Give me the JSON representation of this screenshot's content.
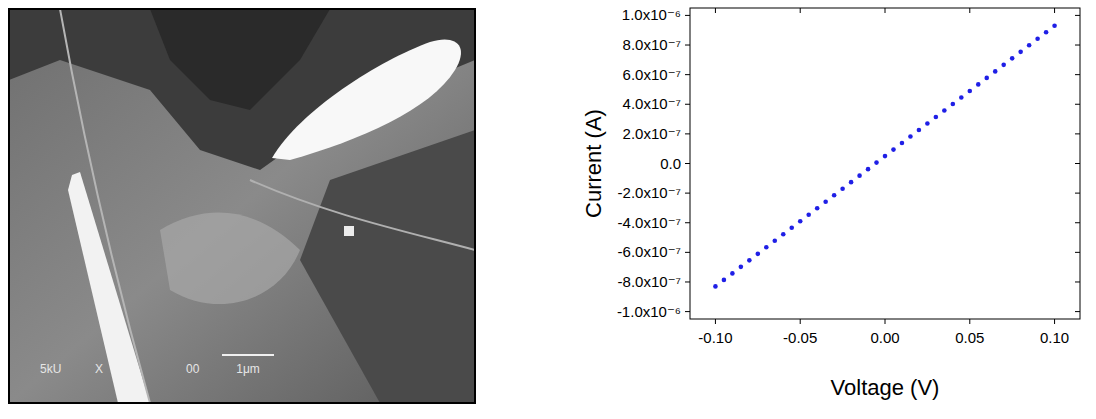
{
  "image": {
    "labels": [
      "5kU",
      "X",
      "00"
    ],
    "scale_bar": "1μm"
  },
  "chart_data": {
    "type": "scatter",
    "x_label": "Voltage (V)",
    "y_label": "Current (A)",
    "marker": "circle",
    "color": "#1f1fe6",
    "grid": false,
    "x": [
      -0.1,
      -0.095,
      -0.09,
      -0.085,
      -0.08,
      -0.075,
      -0.07,
      -0.065,
      -0.06,
      -0.055,
      -0.05,
      -0.045,
      -0.04,
      -0.035,
      -0.03,
      -0.025,
      -0.02,
      -0.015,
      -0.01,
      -0.005,
      0,
      0.005,
      0.01,
      0.015,
      0.02,
      0.025,
      0.03,
      0.035,
      0.04,
      0.045,
      0.05,
      0.055,
      0.06,
      0.065,
      0.07,
      0.075,
      0.08,
      0.085,
      0.09,
      0.095,
      0.1
    ],
    "values": [
      -8.3e-07,
      -7.86e-07,
      -7.42e-07,
      -6.98e-07,
      -6.54e-07,
      -6.1e-07,
      -5.66e-07,
      -5.22e-07,
      -4.78e-07,
      -4.34e-07,
      -3.9e-07,
      -3.46e-07,
      -3.02e-07,
      -2.58e-07,
      -2.14e-07,
      -1.7e-07,
      -1.26e-07,
      -8.2e-08,
      -3.8e-08,
      6e-09,
      5e-08,
      9.4e-08,
      1.38e-07,
      1.82e-07,
      2.26e-07,
      2.7e-07,
      3.14e-07,
      3.58e-07,
      4.02e-07,
      4.46e-07,
      4.9e-07,
      5.34e-07,
      5.78e-07,
      6.22e-07,
      6.66e-07,
      7.1e-07,
      7.54e-07,
      7.98e-07,
      8.42e-07,
      8.86e-07,
      9.3e-07
    ],
    "xlim": [
      -0.115,
      0.115
    ],
    "ylim": [
      -1.05e-06,
      1.05e-06
    ],
    "xticks": [
      {
        "value": -0.1,
        "label": "-0.10"
      },
      {
        "value": -0.05,
        "label": "-0.05"
      },
      {
        "value": 0,
        "label": "0.00"
      },
      {
        "value": 0.05,
        "label": "0.05"
      },
      {
        "value": 0.1,
        "label": "0.10"
      }
    ],
    "yticks": [
      {
        "value": -1e-06,
        "label": "-1.0x10⁻⁶"
      },
      {
        "value": -8e-07,
        "label": "-8.0x10⁻⁷"
      },
      {
        "value": -6e-07,
        "label": "-6.0x10⁻⁷"
      },
      {
        "value": -4e-07,
        "label": "-4.0x10⁻⁷"
      },
      {
        "value": -2e-07,
        "label": "-2.0x10⁻⁷"
      },
      {
        "value": 0,
        "label": "0.0"
      },
      {
        "value": 2e-07,
        "label": "2.0x10⁻⁷"
      },
      {
        "value": 4e-07,
        "label": "4.0x10⁻⁷"
      },
      {
        "value": 6e-07,
        "label": "6.0x10⁻⁷"
      },
      {
        "value": 8e-07,
        "label": "8.0x10⁻⁷"
      },
      {
        "value": 1e-06,
        "label": "1.0x10⁻⁶"
      }
    ]
  }
}
